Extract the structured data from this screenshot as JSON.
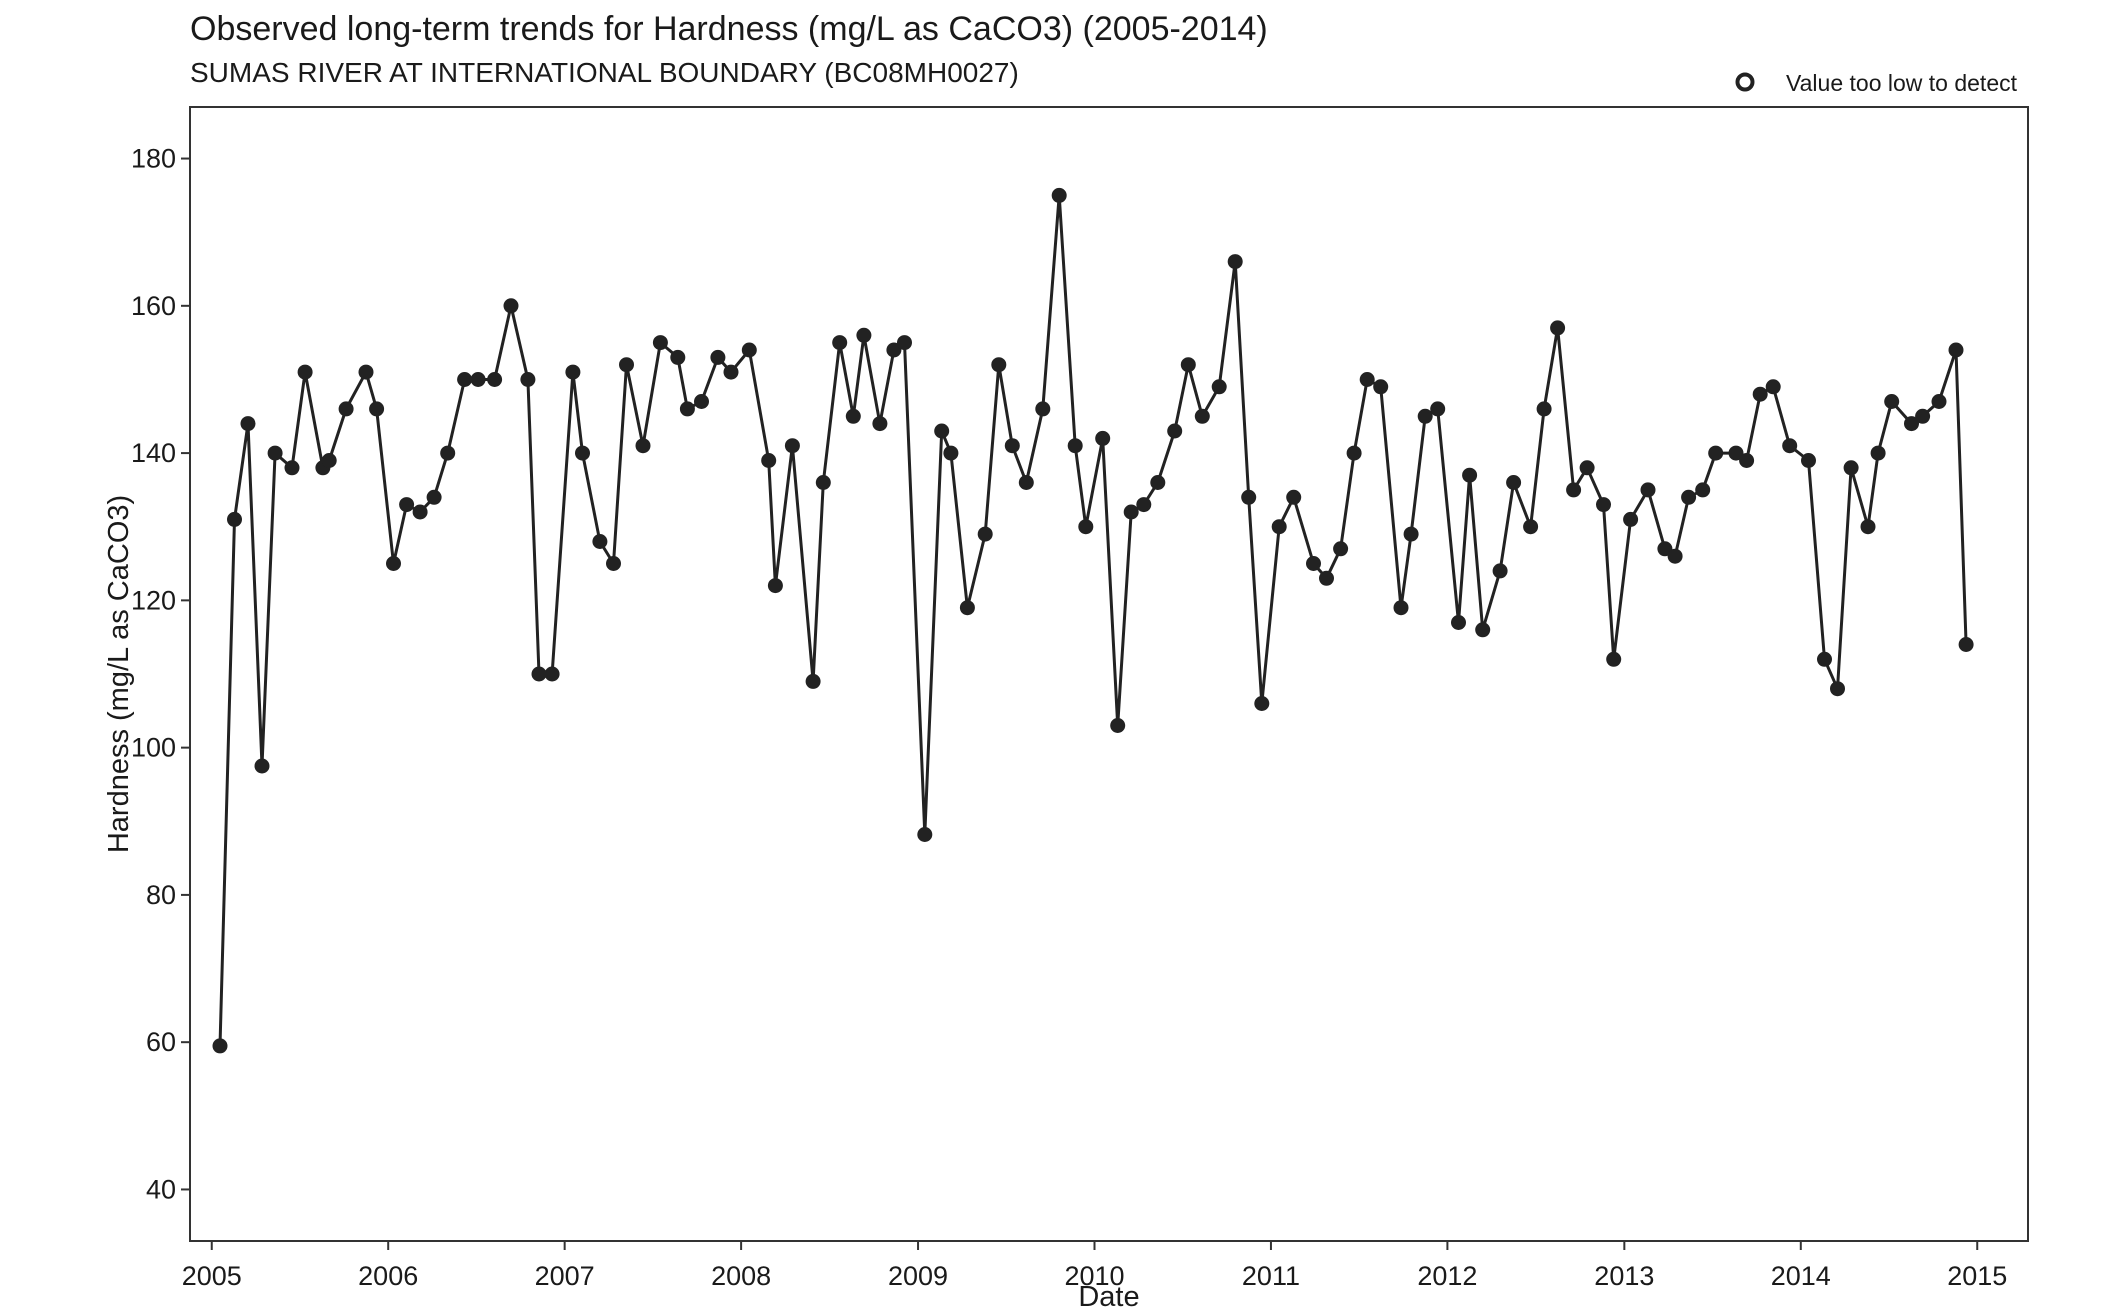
{
  "chart_data": {
    "type": "line",
    "title": "Observed long-term trends for Hardness (mg/L as CaCO3) (2005-2014)",
    "subtitle": "SUMAS RIVER AT INTERNATIONAL BOUNDARY (BC08MH0027)",
    "xlabel": "Date",
    "ylabel": "Hardness (mg/L as CaCO3)",
    "xlim": [
      "2004-11-17",
      "2015-04-16"
    ],
    "ylim": [
      33,
      187
    ],
    "x_ticks": [
      "2005",
      "2006",
      "2007",
      "2008",
      "2009",
      "2010",
      "2011",
      "2012",
      "2013",
      "2014",
      "2015"
    ],
    "y_ticks": [
      40,
      60,
      80,
      100,
      120,
      140,
      160,
      180
    ],
    "grid": false,
    "legend": {
      "placement": "top-right",
      "entries": [
        {
          "label": "Value too low to detect",
          "marker": "open-circle"
        }
      ]
    },
    "series": [
      {
        "color": "#222222",
        "marker": "filled-circle",
        "points": [
          [
            "2005-01-18",
            59.5
          ],
          [
            "2005-02-17",
            131
          ],
          [
            "2005-03-17",
            144
          ],
          [
            "2005-04-15",
            97.5
          ],
          [
            "2005-05-12",
            140
          ],
          [
            "2005-06-16",
            138
          ],
          [
            "2005-07-13",
            151
          ],
          [
            "2005-08-19",
            138
          ],
          [
            "2005-09-01",
            139
          ],
          [
            "2005-10-06",
            146
          ],
          [
            "2005-11-16",
            151
          ],
          [
            "2005-12-08",
            146
          ],
          [
            "2006-01-12",
            125
          ],
          [
            "2006-02-08",
            133
          ],
          [
            "2006-03-08",
            132
          ],
          [
            "2006-04-06",
            134
          ],
          [
            "2006-05-04",
            140
          ],
          [
            "2006-06-08",
            150
          ],
          [
            "2006-07-06",
            150
          ],
          [
            "2006-08-09",
            150
          ],
          [
            "2006-09-12",
            160
          ],
          [
            "2006-10-17",
            150
          ],
          [
            "2006-11-09",
            110
          ],
          [
            "2006-12-06",
            110
          ],
          [
            "2007-01-18",
            151
          ],
          [
            "2007-02-07",
            140
          ],
          [
            "2007-03-15",
            128
          ],
          [
            "2007-04-12",
            125
          ],
          [
            "2007-05-09",
            152
          ],
          [
            "2007-06-12",
            141
          ],
          [
            "2007-07-18",
            155
          ],
          [
            "2007-08-23",
            153
          ],
          [
            "2007-09-12",
            146
          ],
          [
            "2007-10-11",
            147
          ],
          [
            "2007-11-14",
            153
          ],
          [
            "2007-12-11",
            151
          ],
          [
            "2008-01-18",
            154
          ],
          [
            "2008-02-27",
            139
          ],
          [
            "2008-03-12",
            122
          ],
          [
            "2008-04-16",
            141
          ],
          [
            "2008-05-29",
            109
          ],
          [
            "2008-06-19",
            136
          ],
          [
            "2008-07-23",
            155
          ],
          [
            "2008-08-20",
            145
          ],
          [
            "2008-09-11",
            156
          ],
          [
            "2008-10-14",
            144
          ],
          [
            "2008-11-12",
            154
          ],
          [
            "2008-12-04",
            155
          ],
          [
            "2009-01-15",
            88.2
          ],
          [
            "2009-02-19",
            143
          ],
          [
            "2009-03-10",
            140
          ],
          [
            "2009-04-13",
            119
          ],
          [
            "2009-05-20",
            129
          ],
          [
            "2009-06-17",
            152
          ],
          [
            "2009-07-15",
            141
          ],
          [
            "2009-08-13",
            136
          ],
          [
            "2009-09-16",
            146
          ],
          [
            "2009-10-20",
            175
          ],
          [
            "2009-11-22",
            141
          ],
          [
            "2009-12-14",
            130
          ],
          [
            "2010-01-18",
            142
          ],
          [
            "2010-02-18",
            103
          ],
          [
            "2010-03-18",
            132
          ],
          [
            "2010-04-13",
            133
          ],
          [
            "2010-05-12",
            136
          ],
          [
            "2010-06-16",
            143
          ],
          [
            "2010-07-14",
            152
          ],
          [
            "2010-08-12",
            145
          ],
          [
            "2010-09-16",
            149
          ],
          [
            "2010-10-19",
            166
          ],
          [
            "2010-11-16",
            134
          ],
          [
            "2010-12-13",
            106
          ],
          [
            "2011-01-18",
            130
          ],
          [
            "2011-02-17",
            134
          ],
          [
            "2011-03-30",
            125
          ],
          [
            "2011-04-26",
            123
          ],
          [
            "2011-05-25",
            127
          ],
          [
            "2011-06-22",
            140
          ],
          [
            "2011-07-19",
            150
          ],
          [
            "2011-08-16",
            149
          ],
          [
            "2011-09-27",
            119
          ],
          [
            "2011-10-18",
            129
          ],
          [
            "2011-11-16",
            145
          ],
          [
            "2011-12-12",
            146
          ],
          [
            "2012-01-24",
            117
          ],
          [
            "2012-02-16",
            137
          ],
          [
            "2012-03-14",
            116
          ],
          [
            "2012-04-19",
            124
          ],
          [
            "2012-05-17",
            136
          ],
          [
            "2012-06-21",
            130
          ],
          [
            "2012-07-19",
            146
          ],
          [
            "2012-08-16",
            157
          ],
          [
            "2012-09-18",
            135
          ],
          [
            "2012-10-16",
            138
          ],
          [
            "2012-11-19",
            133
          ],
          [
            "2012-12-10",
            112
          ],
          [
            "2013-01-14",
            131
          ],
          [
            "2013-02-19",
            135
          ],
          [
            "2013-03-26",
            127
          ],
          [
            "2013-04-16",
            126
          ],
          [
            "2013-05-14",
            134
          ],
          [
            "2013-06-12",
            135
          ],
          [
            "2013-07-09",
            140
          ],
          [
            "2013-08-20",
            140
          ],
          [
            "2013-09-11",
            139
          ],
          [
            "2013-10-09",
            148
          ],
          [
            "2013-11-05",
            149
          ],
          [
            "2013-12-09",
            141
          ],
          [
            "2014-01-17",
            139
          ],
          [
            "2014-02-19",
            112
          ],
          [
            "2014-03-18",
            108
          ],
          [
            "2014-04-15",
            138
          ],
          [
            "2014-05-20",
            130
          ],
          [
            "2014-06-10",
            140
          ],
          [
            "2014-07-08",
            147
          ],
          [
            "2014-08-18",
            144
          ],
          [
            "2014-09-10",
            145
          ],
          [
            "2014-10-14",
            147
          ],
          [
            "2014-11-18",
            154
          ],
          [
            "2014-12-09",
            114
          ]
        ]
      }
    ]
  }
}
